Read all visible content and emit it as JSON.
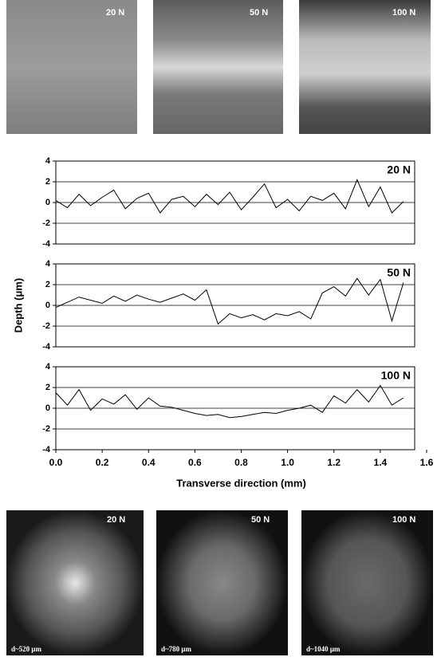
{
  "top_images": [
    {
      "label": "20 N"
    },
    {
      "label": "50 N"
    },
    {
      "label": "100 N"
    }
  ],
  "chart_data": [
    {
      "type": "line",
      "label": "20 N",
      "color": "#000000",
      "x": [
        0,
        0.05,
        0.1,
        0.15,
        0.2,
        0.25,
        0.3,
        0.35,
        0.4,
        0.45,
        0.5,
        0.55,
        0.6,
        0.65,
        0.7,
        0.75,
        0.8,
        0.85,
        0.9,
        0.95,
        1,
        1.05,
        1.1,
        1.15,
        1.2,
        1.25,
        1.3,
        1.35,
        1.4,
        1.45,
        1.5
      ],
      "values": [
        0.2,
        -0.5,
        0.8,
        -0.3,
        0.5,
        1.2,
        -0.6,
        0.4,
        0.9,
        -1.0,
        0.3,
        0.6,
        -0.4,
        0.8,
        -0.2,
        1.0,
        -0.7,
        0.5,
        1.8,
        -0.5,
        0.3,
        -0.8,
        0.6,
        0.2,
        0.9,
        -0.6,
        2.2,
        -0.4,
        1.5,
        -1.0,
        0.1
      ],
      "xlim": [
        0,
        1.6
      ],
      "ylim": [
        -4,
        4
      ],
      "yticks": [
        -4,
        -2,
        0,
        2,
        4
      ],
      "grid": true
    },
    {
      "type": "line",
      "label": "50 N",
      "color": "#000000",
      "ylabel": "Depth (μm)",
      "x": [
        0,
        0.05,
        0.1,
        0.15,
        0.2,
        0.25,
        0.3,
        0.35,
        0.4,
        0.45,
        0.5,
        0.55,
        0.6,
        0.65,
        0.7,
        0.75,
        0.8,
        0.85,
        0.9,
        0.95,
        1,
        1.05,
        1.1,
        1.15,
        1.2,
        1.25,
        1.3,
        1.35,
        1.4,
        1.45,
        1.5
      ],
      "values": [
        -0.2,
        0.3,
        0.8,
        0.5,
        0.2,
        0.9,
        0.4,
        1.0,
        0.6,
        0.3,
        0.7,
        1.1,
        0.5,
        1.5,
        -1.8,
        -0.8,
        -1.2,
        -0.9,
        -1.4,
        -0.8,
        -1.0,
        -0.6,
        -1.3,
        1.2,
        1.8,
        0.9,
        2.6,
        1.0,
        2.5,
        -1.5,
        2.2
      ],
      "xlim": [
        0,
        1.6
      ],
      "ylim": [
        -4,
        4
      ],
      "yticks": [
        -4,
        -2,
        0,
        2,
        4
      ],
      "grid": true
    },
    {
      "type": "line",
      "label": "100 N",
      "color": "#000000",
      "xlabel": "Transverse direction (mm)",
      "x": [
        0,
        0.05,
        0.1,
        0.15,
        0.2,
        0.25,
        0.3,
        0.35,
        0.4,
        0.45,
        0.5,
        0.55,
        0.6,
        0.65,
        0.7,
        0.75,
        0.8,
        0.85,
        0.9,
        0.95,
        1,
        1.05,
        1.1,
        1.15,
        1.2,
        1.25,
        1.3,
        1.35,
        1.4,
        1.45,
        1.5
      ],
      "values": [
        1.5,
        0.3,
        1.8,
        -0.2,
        0.9,
        0.4,
        1.3,
        -0.1,
        1.0,
        0.2,
        0.1,
        -0.2,
        -0.5,
        -0.7,
        -0.6,
        -0.9,
        -0.8,
        -0.6,
        -0.4,
        -0.5,
        -0.2,
        0.0,
        0.3,
        -0.4,
        1.2,
        0.5,
        1.8,
        0.6,
        2.2,
        0.3,
        1.0
      ],
      "xlim": [
        0,
        1.6
      ],
      "ylim": [
        -4,
        4
      ],
      "yticks": [
        -4,
        -2,
        0,
        2,
        4
      ],
      "grid": true,
      "xticks": [
        {
          "value": 0,
          "label": "0.0"
        },
        0.2,
        0.4,
        0.6,
        0.8,
        {
          "value": 1,
          "label": "1.0"
        },
        1.2,
        1.4,
        1.6
      ]
    }
  ],
  "bottom_images": [
    {
      "label": "20 N",
      "diameter": "d~520 μm"
    },
    {
      "label": "50 N",
      "diameter": "d~780 μm"
    },
    {
      "label": "100 N",
      "diameter": "d~1040 μm"
    }
  ]
}
